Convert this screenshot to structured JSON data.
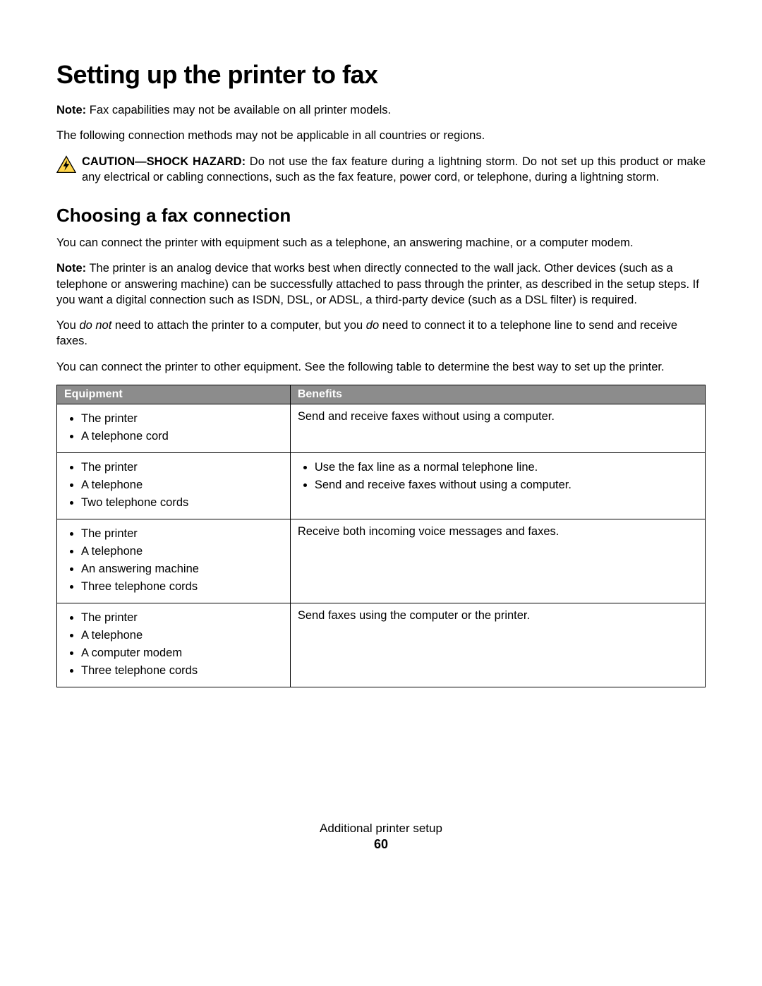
{
  "heading": "Setting up the printer to fax",
  "note1_label": "Note:",
  "note1_text": " Fax capabilities may not be available on all printer models.",
  "intro2": "The following connection methods may not be applicable in all countries or regions.",
  "caution_label": "CAUTION—SHOCK HAZARD:",
  "caution_text": " Do not use the fax feature during a lightning storm. Do not set up this product or make any electrical or cabling connections, such as the fax feature, power cord, or telephone, during a lightning storm.",
  "subheading": "Choosing a fax connection",
  "p1": "You can connect the printer with equipment such as a telephone, an answering machine, or a computer modem.",
  "note2_label": "Note:",
  "note2_text": " The printer is an analog device that works best when directly connected to the wall jack. Other devices (such as a telephone or answering machine) can be successfully attached to pass through the printer, as described in the setup steps. If you want a digital connection such as ISDN, DSL, or ADSL, a third-party device (such as a DSL filter) is required.",
  "p3_a": "You ",
  "p3_i1": "do not",
  "p3_b": " need to attach the printer to a computer, but you ",
  "p3_i2": "do",
  "p3_c": " need to connect it to a telephone line to send and receive faxes.",
  "p4": "You can connect the printer to other equipment. See the following table to determine the best way to set up the printer.",
  "table": {
    "columns": [
      "Equipment",
      "Benefits"
    ],
    "rows": [
      {
        "equipment": [
          "The printer",
          "A telephone cord"
        ],
        "benefits_text": "Send and receive faxes without using a computer.",
        "benefits_list": null
      },
      {
        "equipment": [
          "The printer",
          "A telephone",
          "Two telephone cords"
        ],
        "benefits_text": null,
        "benefits_list": [
          "Use the fax line as a normal telephone line.",
          "Send and receive faxes without using a computer."
        ]
      },
      {
        "equipment": [
          "The printer",
          "A telephone",
          "An answering machine",
          "Three telephone cords"
        ],
        "benefits_text": "Receive both incoming voice messages and faxes.",
        "benefits_list": null
      },
      {
        "equipment": [
          "The printer",
          "A telephone",
          "A computer modem",
          "Three telephone cords"
        ],
        "benefits_text": "Send faxes using the computer or the printer.",
        "benefits_list": null
      }
    ]
  },
  "footer_title": "Additional printer setup",
  "footer_page": "60",
  "colors": {
    "table_header_bg": "#8c8c8c",
    "table_header_fg": "#ffffff",
    "caution_fill": "#ffd54a",
    "caution_stroke": "#000000"
  }
}
